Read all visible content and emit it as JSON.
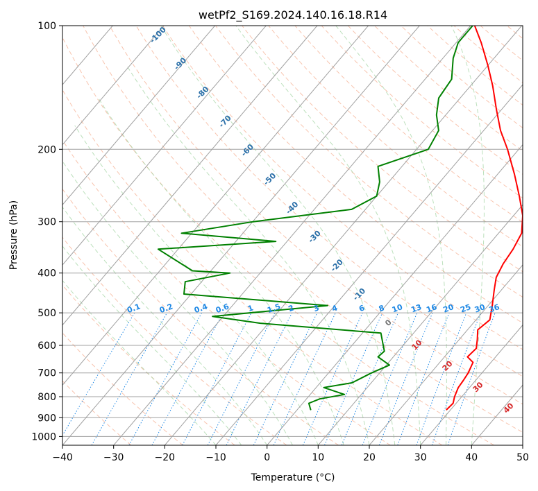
{
  "chart_data": {
    "type": "line",
    "subtype": "skew-T log-p diagram",
    "title": "wetPf2_S169.2024.140.16.18.R14",
    "xlabel": "Temperature (°C)",
    "ylabel": "Pressure (hPa)",
    "xlim": [
      -40,
      50
    ],
    "ylim": [
      1050,
      100
    ],
    "y_scale": "log",
    "x_ticks": [
      "−40",
      "−30",
      "−20",
      "−10",
      "0",
      "10",
      "20",
      "30",
      "40",
      "50"
    ],
    "y_ticks": [
      "100",
      "200",
      "300",
      "400",
      "500",
      "600",
      "700",
      "800",
      "900",
      "1000"
    ],
    "grid": true,
    "colors": {
      "temperature": "#ff0000",
      "dewpoint": "#008000",
      "isotherm": "#a0a0a0",
      "dry_adiabat": "#f4a582",
      "moist_adiabat": "#9fd39f",
      "mixing_ratio": "#1e88e5",
      "dry_label": "#2a6fa8",
      "moist_label": "#d62728"
    },
    "series": [
      {
        "name": "",
        "role": "temperature",
        "points": [
          {
            "p": 860,
            "t": 29.2
          },
          {
            "p": 830,
            "t": 29.4
          },
          {
            "p": 800,
            "t": 28.6
          },
          {
            "p": 760,
            "t": 27.8
          },
          {
            "p": 730,
            "t": 27.6
          },
          {
            "p": 700,
            "t": 27.3
          },
          {
            "p": 660,
            "t": 26.5
          },
          {
            "p": 640,
            "t": 24.5
          },
          {
            "p": 610,
            "t": 24.8
          },
          {
            "p": 580,
            "t": 23.5
          },
          {
            "p": 550,
            "t": 22.0
          },
          {
            "p": 520,
            "t": 22.7
          },
          {
            "p": 480,
            "t": 20.8
          },
          {
            "p": 440,
            "t": 18.6
          },
          {
            "p": 410,
            "t": 16.9
          },
          {
            "p": 380,
            "t": 16.0
          },
          {
            "p": 350,
            "t": 15.5
          },
          {
            "p": 320,
            "t": 14.5
          },
          {
            "p": 290,
            "t": 11.8
          },
          {
            "p": 260,
            "t": 7.9
          },
          {
            "p": 230,
            "t": 3.3
          },
          {
            "p": 200,
            "t": -2.2
          },
          {
            "p": 180,
            "t": -6.7
          },
          {
            "p": 160,
            "t": -11.0
          },
          {
            "p": 140,
            "t": -15.7
          },
          {
            "p": 125,
            "t": -20.0
          },
          {
            "p": 110,
            "t": -25.1
          },
          {
            "p": 100,
            "t": -29.2
          }
        ]
      },
      {
        "name": "",
        "role": "dewpoint",
        "points": [
          {
            "p": 860,
            "t": 2.6
          },
          {
            "p": 830,
            "t": 1.2
          },
          {
            "p": 810,
            "t": 2.6
          },
          {
            "p": 790,
            "t": 6.7
          },
          {
            "p": 760,
            "t": 1.5
          },
          {
            "p": 740,
            "t": 6.2
          },
          {
            "p": 700,
            "t": 8.4
          },
          {
            "p": 670,
            "t": 10.6
          },
          {
            "p": 640,
            "t": 7.0
          },
          {
            "p": 620,
            "t": 7.3
          },
          {
            "p": 590,
            "t": 5.5
          },
          {
            "p": 560,
            "t": 3.6
          },
          {
            "p": 530,
            "t": -21.6
          },
          {
            "p": 510,
            "t": -32.1
          },
          {
            "p": 480,
            "t": -11.4
          },
          {
            "p": 450,
            "t": -41.4
          },
          {
            "p": 420,
            "t": -43.2
          },
          {
            "p": 400,
            "t": -35.9
          },
          {
            "p": 395,
            "t": -43.6
          },
          {
            "p": 350,
            "t": -53.9
          },
          {
            "p": 335,
            "t": -32.2
          },
          {
            "p": 320,
            "t": -52.0
          },
          {
            "p": 300,
            "t": -39.9
          },
          {
            "p": 280,
            "t": -22.7
          },
          {
            "p": 260,
            "t": -20.0
          },
          {
            "p": 240,
            "t": -21.8
          },
          {
            "p": 220,
            "t": -24.7
          },
          {
            "p": 200,
            "t": -17.7
          },
          {
            "p": 180,
            "t": -18.8
          },
          {
            "p": 165,
            "t": -21.8
          },
          {
            "p": 150,
            "t": -24.2
          },
          {
            "p": 135,
            "t": -24.8
          },
          {
            "p": 120,
            "t": -28.0
          },
          {
            "p": 110,
            "t": -29.6
          },
          {
            "p": 100,
            "t": -29.6
          }
        ]
      }
    ],
    "dry_adiabat_labels": [
      "-100",
      "-90",
      "-80",
      "-70",
      "-60",
      "-50",
      "-40",
      "-30",
      "-20",
      "-10"
    ],
    "zero_label": "0",
    "moist_adiabat_labels": [
      "10",
      "20",
      "30",
      "40"
    ],
    "mixing_ratio_labels": [
      "0.1",
      "0.2",
      "0.4",
      "0.6",
      "1",
      "1.5",
      "2",
      "3",
      "4",
      "6",
      "8",
      "10",
      "13",
      "16",
      "20",
      "25",
      "30",
      "36"
    ]
  }
}
